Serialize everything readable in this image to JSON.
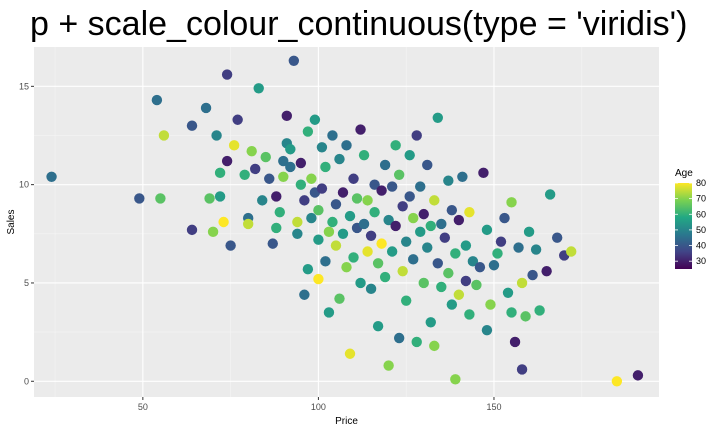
{
  "chart_data": {
    "type": "scatter",
    "title": "p + scale_colour_continuous(type = 'viridis')",
    "xlabel": "Price",
    "ylabel": "Sales",
    "xlim": [
      19,
      197
    ],
    "ylim": [
      -0.8,
      17.0
    ],
    "x_ticks": [
      50,
      100,
      150
    ],
    "y_ticks": [
      0,
      5,
      10,
      15
    ],
    "grid": true,
    "color_scale": {
      "title": "Age",
      "type": "viridis",
      "range": [
        25,
        80
      ],
      "ticks": [
        30,
        40,
        50,
        60,
        70,
        80
      ],
      "stops": [
        "#440154",
        "#414487",
        "#2A788E",
        "#22A884",
        "#7AD151",
        "#FDE725"
      ]
    },
    "points": [
      [
        24,
        10.4,
        45
      ],
      [
        49,
        9.3,
        40
      ],
      [
        54,
        14.3,
        45
      ],
      [
        55,
        9.3,
        65
      ],
      [
        56,
        12.5,
        75
      ],
      [
        64,
        7.7,
        35
      ],
      [
        64,
        13.0,
        40
      ],
      [
        68,
        13.9,
        45
      ],
      [
        69,
        9.3,
        65
      ],
      [
        70,
        7.6,
        70
      ],
      [
        71,
        12.5,
        50
      ],
      [
        72,
        10.6,
        60
      ],
      [
        72,
        9.4,
        55
      ],
      [
        73,
        8.1,
        80
      ],
      [
        74,
        11.2,
        30
      ],
      [
        74,
        15.6,
        35
      ],
      [
        75,
        6.9,
        40
      ],
      [
        76,
        12.0,
        78
      ],
      [
        77,
        13.3,
        35
      ],
      [
        79,
        10.5,
        60
      ],
      [
        80,
        8.3,
        45
      ],
      [
        80,
        8.0,
        75
      ],
      [
        81,
        11.7,
        70
      ],
      [
        82,
        10.8,
        35
      ],
      [
        83,
        14.9,
        55
      ],
      [
        84,
        9.2,
        50
      ],
      [
        85,
        11.4,
        65
      ],
      [
        86,
        10.3,
        40
      ],
      [
        87,
        7.0,
        40
      ],
      [
        88,
        7.8,
        60
      ],
      [
        88,
        9.4,
        30
      ],
      [
        89,
        8.6,
        60
      ],
      [
        90,
        11.2,
        45
      ],
      [
        90,
        10.4,
        70
      ],
      [
        91,
        12.1,
        50
      ],
      [
        91,
        13.5,
        30
      ],
      [
        92,
        11.8,
        55
      ],
      [
        92,
        10.9,
        45
      ],
      [
        93,
        16.3,
        40
      ],
      [
        94,
        8.1,
        75
      ],
      [
        94,
        7.5,
        50
      ],
      [
        95,
        11.1,
        30
      ],
      [
        95,
        10.0,
        60
      ],
      [
        96,
        9.2,
        35
      ],
      [
        96,
        4.4,
        45
      ],
      [
        97,
        12.7,
        60
      ],
      [
        97,
        5.7,
        55
      ],
      [
        98,
        10.3,
        70
      ],
      [
        98,
        8.3,
        50
      ],
      [
        99,
        9.6,
        40
      ],
      [
        99,
        13.3,
        55
      ],
      [
        100,
        8.7,
        65
      ],
      [
        100,
        7.2,
        55
      ],
      [
        100,
        5.2,
        80
      ],
      [
        101,
        11.9,
        50
      ],
      [
        101,
        9.8,
        35
      ],
      [
        102,
        6.1,
        45
      ],
      [
        102,
        10.9,
        60
      ],
      [
        103,
        7.6,
        70
      ],
      [
        103,
        3.5,
        55
      ],
      [
        104,
        12.5,
        45
      ],
      [
        104,
        8.1,
        60
      ],
      [
        105,
        9.0,
        40
      ],
      [
        105,
        6.9,
        75
      ],
      [
        106,
        11.3,
        50
      ],
      [
        106,
        4.2,
        65
      ],
      [
        107,
        7.5,
        55
      ],
      [
        107,
        9.6,
        30
      ],
      [
        108,
        12.0,
        45
      ],
      [
        108,
        5.8,
        70
      ],
      [
        109,
        8.4,
        55
      ],
      [
        109,
        1.4,
        78
      ],
      [
        110,
        10.3,
        35
      ],
      [
        110,
        6.3,
        60
      ],
      [
        111,
        9.3,
        65
      ],
      [
        111,
        7.8,
        40
      ],
      [
        112,
        12.8,
        30
      ],
      [
        112,
        5.0,
        55
      ],
      [
        113,
        8.0,
        45
      ],
      [
        113,
        11.5,
        60
      ],
      [
        114,
        6.6,
        78
      ],
      [
        114,
        9.2,
        70
      ],
      [
        115,
        7.4,
        35
      ],
      [
        115,
        4.7,
        50
      ],
      [
        116,
        10.0,
        40
      ],
      [
        116,
        8.6,
        60
      ],
      [
        117,
        6.0,
        65
      ],
      [
        117,
        2.8,
        55
      ],
      [
        118,
        9.7,
        30
      ],
      [
        118,
        7.0,
        80
      ],
      [
        119,
        11.0,
        45
      ],
      [
        119,
        5.3,
        60
      ],
      [
        120,
        8.2,
        50
      ],
      [
        120,
        0.8,
        70
      ],
      [
        121,
        9.9,
        40
      ],
      [
        121,
        6.6,
        55
      ],
      [
        122,
        12.0,
        60
      ],
      [
        122,
        7.9,
        30
      ],
      [
        123,
        2.2,
        45
      ],
      [
        123,
        10.5,
        65
      ],
      [
        124,
        8.9,
        35
      ],
      [
        124,
        5.6,
        75
      ],
      [
        125,
        7.1,
        50
      ],
      [
        125,
        4.1,
        60
      ],
      [
        126,
        9.4,
        40
      ],
      [
        126,
        11.5,
        55
      ],
      [
        127,
        8.3,
        70
      ],
      [
        127,
        6.2,
        45
      ],
      [
        128,
        12.5,
        35
      ],
      [
        128,
        2.0,
        60
      ],
      [
        129,
        7.6,
        55
      ],
      [
        129,
        9.9,
        45
      ],
      [
        130,
        5.0,
        65
      ],
      [
        130,
        8.5,
        30
      ],
      [
        131,
        6.8,
        50
      ],
      [
        131,
        11.0,
        40
      ],
      [
        132,
        3.0,
        55
      ],
      [
        132,
        7.9,
        60
      ],
      [
        133,
        9.2,
        75
      ],
      [
        133,
        1.8,
        70
      ],
      [
        134,
        6.0,
        40
      ],
      [
        134,
        13.4,
        55
      ],
      [
        135,
        8.0,
        45
      ],
      [
        135,
        4.8,
        60
      ],
      [
        136,
        7.3,
        35
      ],
      [
        137,
        10.2,
        50
      ],
      [
        137,
        5.5,
        65
      ],
      [
        138,
        3.9,
        55
      ],
      [
        138,
        8.7,
        40
      ],
      [
        139,
        6.5,
        60
      ],
      [
        139,
        0.1,
        70
      ],
      [
        140,
        8.2,
        30
      ],
      [
        140,
        4.4,
        75
      ],
      [
        141,
        10.4,
        45
      ],
      [
        142,
        6.9,
        55
      ],
      [
        142,
        5.1,
        35
      ],
      [
        143,
        3.4,
        60
      ],
      [
        143,
        8.6,
        78
      ],
      [
        144,
        6.1,
        50
      ],
      [
        145,
        4.9,
        65
      ],
      [
        146,
        5.8,
        40
      ],
      [
        147,
        10.6,
        30
      ],
      [
        148,
        7.7,
        55
      ],
      [
        148,
        2.6,
        50
      ],
      [
        149,
        3.9,
        70
      ],
      [
        150,
        5.9,
        45
      ],
      [
        151,
        6.5,
        60
      ],
      [
        152,
        7.1,
        35
      ],
      [
        153,
        8.3,
        40
      ],
      [
        154,
        4.5,
        55
      ],
      [
        155,
        9.1,
        70
      ],
      [
        155,
        3.5,
        60
      ],
      [
        156,
        2.0,
        30
      ],
      [
        157,
        6.8,
        45
      ],
      [
        158,
        5.0,
        75
      ],
      [
        158,
        0.6,
        35
      ],
      [
        159,
        3.3,
        65
      ],
      [
        160,
        7.6,
        55
      ],
      [
        161,
        5.4,
        40
      ],
      [
        162,
        6.7,
        50
      ],
      [
        163,
        3.6,
        60
      ],
      [
        165,
        5.6,
        30
      ],
      [
        166,
        9.5,
        55
      ],
      [
        168,
        7.3,
        40
      ],
      [
        170,
        6.4,
        35
      ],
      [
        172,
        6.6,
        75
      ],
      [
        185,
        0.0,
        80
      ],
      [
        191,
        0.3,
        30
      ]
    ]
  }
}
